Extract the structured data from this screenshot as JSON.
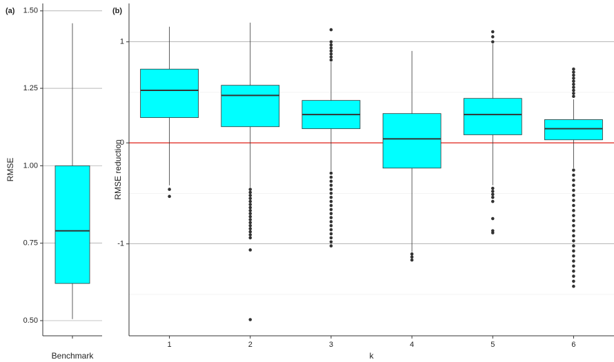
{
  "chart_data": [
    {
      "type": "box",
      "panel_label": "(a)",
      "ylabel": "RMSE",
      "categories": [
        "Benchmark"
      ],
      "color": "#00ffff",
      "ylim": [
        0.451,
        1.524
      ],
      "yticks": [
        {
          "value": 0.5,
          "label": "0.50"
        },
        {
          "value": 0.75,
          "label": "0.75"
        },
        {
          "value": 1.0,
          "label": "1.00"
        },
        {
          "value": 1.25,
          "label": "1.25"
        },
        {
          "value": 1.5,
          "label": "1.50"
        }
      ],
      "grid": true,
      "boxes": [
        {
          "whislo": 0.505,
          "q1": 0.62,
          "med": 0.79,
          "q3": 1.0,
          "whishi": 1.46,
          "fliers": []
        }
      ]
    },
    {
      "type": "box",
      "panel_label": "(b)",
      "ylabel": "RMSE reduction",
      "xlabel": "k",
      "categories": [
        "1",
        "2",
        "3",
        "4",
        "5",
        "6"
      ],
      "color": "#00ffff",
      "ylim": [
        -1.91,
        1.38
      ],
      "yticks": [
        -1,
        0,
        1
      ],
      "minor_yticks": [
        -1.5,
        -0.5,
        0.5
      ],
      "grid": true,
      "hline": {
        "value": 0,
        "color": "#e0302a"
      },
      "boxes": [
        {
          "whislo": -0.42,
          "q1": 0.25,
          "med": 0.52,
          "q3": 0.73,
          "whishi": 1.15,
          "fliers": [
            -0.46,
            -0.53
          ]
        },
        {
          "whislo": -0.44,
          "q1": 0.16,
          "med": 0.47,
          "q3": 0.57,
          "whishi": 1.19,
          "fliers": [
            -0.46,
            -0.49,
            -0.52,
            -0.55,
            -0.58,
            -0.61,
            -0.64,
            -0.67,
            -0.7,
            -0.73,
            -0.76,
            -0.79,
            -0.82,
            -0.85,
            -0.88,
            -0.91,
            -0.94,
            -1.06,
            -1.75
          ]
        },
        {
          "whislo": -0.28,
          "q1": 0.14,
          "med": 0.28,
          "q3": 0.42,
          "whishi": 0.8,
          "fliers": [
            0.82,
            0.85,
            0.88,
            0.91,
            0.94,
            0.97,
            1.0,
            1.12,
            -0.3,
            -0.34,
            -0.38,
            -0.42,
            -0.46,
            -0.5,
            -0.54,
            -0.58,
            -0.62,
            -0.66,
            -0.7,
            -0.74,
            -0.78,
            -0.82,
            -0.86,
            -0.9,
            -0.94,
            -0.98,
            -1.02
          ]
        },
        {
          "whislo": -1.08,
          "q1": -0.25,
          "med": 0.04,
          "q3": 0.29,
          "whishi": 0.91,
          "fliers": [
            -1.1,
            -1.13,
            -1.16
          ]
        },
        {
          "whislo": -0.42,
          "q1": 0.08,
          "med": 0.28,
          "q3": 0.44,
          "whishi": 0.98,
          "fliers": [
            1.0,
            1.05,
            1.1,
            -0.45,
            -0.48,
            -0.51,
            -0.54,
            -0.58,
            -0.75,
            -0.87,
            -0.89
          ]
        },
        {
          "whislo": -0.25,
          "q1": 0.03,
          "med": 0.14,
          "q3": 0.23,
          "whishi": 0.43,
          "fliers": [
            0.46,
            0.49,
            0.52,
            0.55,
            0.58,
            0.61,
            0.64,
            0.67,
            0.7,
            0.73,
            -0.27,
            -0.32,
            -0.37,
            -0.42,
            -0.47,
            -0.52,
            -0.57,
            -0.62,
            -0.67,
            -0.72,
            -0.77,
            -0.82,
            -0.87,
            -0.92,
            -0.97,
            -1.02,
            -1.07,
            -1.12,
            -1.17,
            -1.22,
            -1.27,
            -1.32,
            -1.37,
            -1.42
          ]
        }
      ]
    }
  ]
}
